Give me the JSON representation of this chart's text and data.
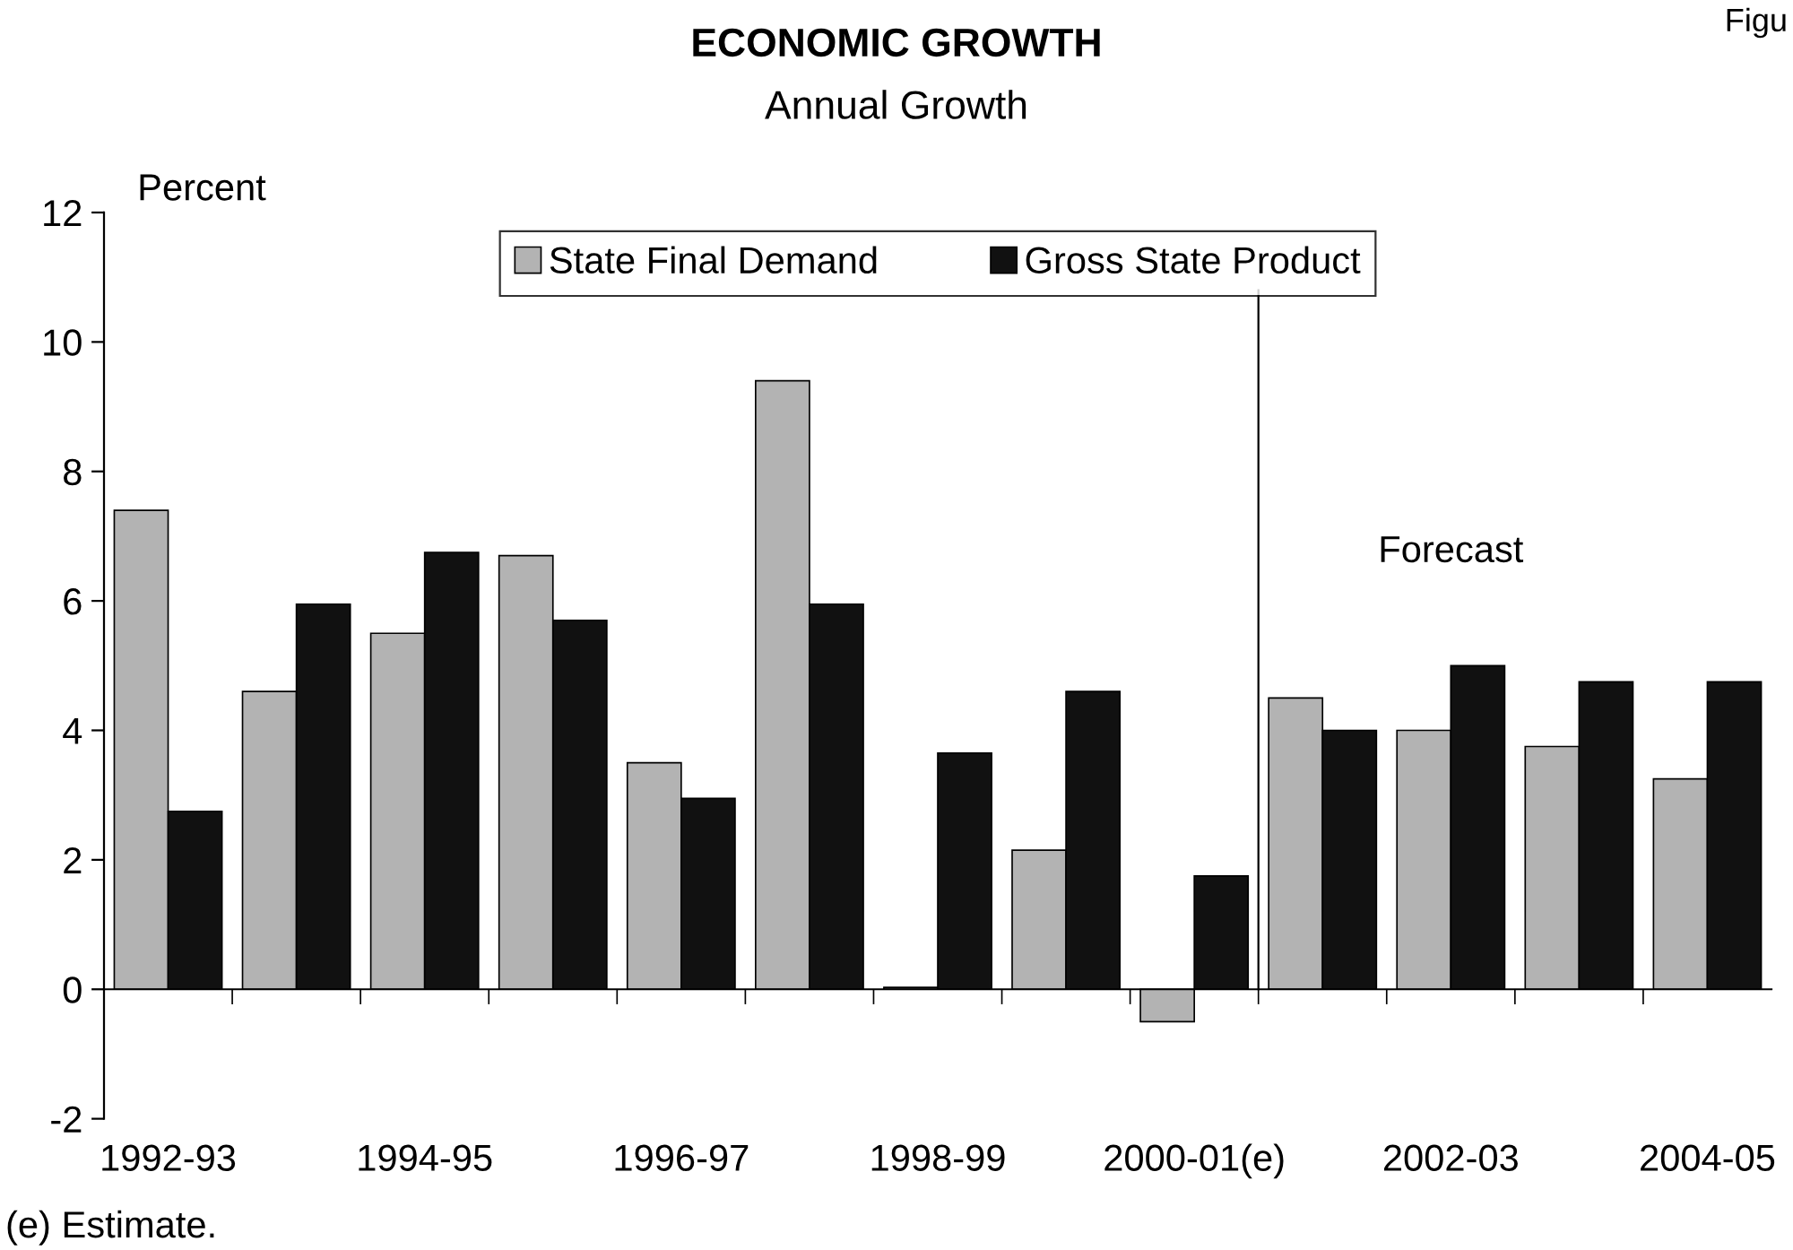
{
  "chart_data": {
    "type": "bar",
    "title": "ECONOMIC GROWTH",
    "subtitle": "Annual Growth",
    "ylabel": "Percent",
    "categories": [
      "1992-93",
      null,
      "1994-95",
      null,
      "1996-97",
      null,
      "1998-99",
      null,
      "2000-01(e)",
      null,
      "2002-03",
      null,
      "2004-05"
    ],
    "series": [
      {
        "name": "State Final Demand",
        "color": "#b3b3b3",
        "values": [
          7.4,
          4.6,
          5.5,
          6.7,
          3.5,
          9.4,
          0.03,
          2.15,
          -0.5,
          4.5,
          4.0,
          3.75,
          3.25
        ]
      },
      {
        "name": "Gross State Product",
        "color": "#111111",
        "values": [
          2.75,
          5.95,
          6.75,
          5.7,
          2.95,
          5.95,
          3.65,
          4.6,
          1.75,
          4.0,
          5.0,
          4.75,
          4.75
        ]
      }
    ],
    "ylim": [
      -2,
      12
    ],
    "yticks": [
      -2,
      0,
      2,
      4,
      6,
      8,
      10,
      12
    ],
    "legend": "top",
    "annotations": [
      "(e) Estimate.",
      "Figu",
      "Forecast"
    ]
  }
}
